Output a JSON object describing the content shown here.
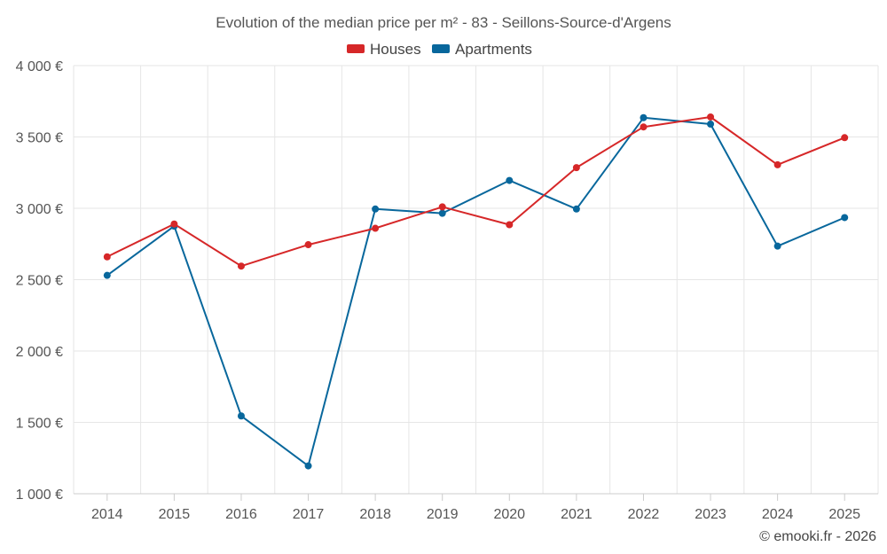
{
  "chart_data": {
    "type": "line",
    "title": "Evolution of the median price per m² - 83 - Seillons-Source-d'Argens",
    "categories": [
      "2014",
      "2015",
      "2016",
      "2017",
      "2018",
      "2019",
      "2020",
      "2021",
      "2022",
      "2023",
      "2024",
      "2025"
    ],
    "series": [
      {
        "name": "Houses",
        "color": "#d62728",
        "values": [
          2660,
          2890,
          2595,
          2745,
          2860,
          3010,
          2885,
          3285,
          3570,
          3640,
          3305,
          3495
        ]
      },
      {
        "name": "Apartments",
        "color": "#08679c",
        "values": [
          2530,
          2875,
          1545,
          1195,
          2995,
          2965,
          3195,
          2995,
          3635,
          3590,
          2735,
          2935
        ]
      }
    ],
    "ylim": [
      1000,
      4000
    ],
    "yticks": [
      1000,
      1500,
      2000,
      2500,
      3000,
      3500,
      4000
    ],
    "ytick_labels": [
      "1 000 €",
      "1 500 €",
      "2 000 €",
      "2 500 €",
      "3 000 €",
      "3 500 €",
      "4 000 €"
    ],
    "xlabel": "",
    "ylabel": "",
    "grid": true,
    "legend_position": "top-center"
  },
  "credit": "© emooki.fr - 2026"
}
